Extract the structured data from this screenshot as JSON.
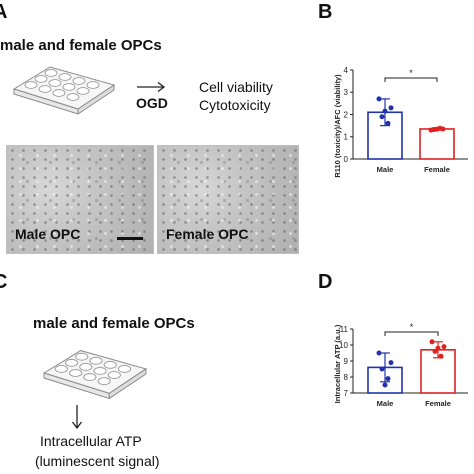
{
  "panels": {
    "A": {
      "letter": "A",
      "heading": "male and female OPCs",
      "treatment": "OGD",
      "readout_1": "Cell viability",
      "readout_2": "Cytotoxicity",
      "image_left_label": "Male OPC",
      "image_right_label": "Female OPC"
    },
    "B": {
      "letter": "B"
    },
    "C": {
      "letter": "C",
      "heading": "male and female OPCs",
      "readout_1": "Intracellular ATP",
      "readout_2": "(luminescent signal)"
    },
    "D": {
      "letter": "D"
    }
  },
  "colors": {
    "male": "#2233aa",
    "female": "#dd2222",
    "axis": "#222222",
    "plate": "#8a8a8a"
  },
  "chart_data": [
    {
      "type": "bar",
      "panel": "B",
      "categories": [
        "Male",
        "Female"
      ],
      "values": [
        2.1,
        1.35
      ],
      "errors": [
        0.6,
        0.05
      ],
      "points": [
        [
          2.7,
          2.3,
          1.9,
          1.6,
          2.15
        ],
        [
          1.3,
          1.35,
          1.32,
          1.38,
          1.34
        ]
      ],
      "ylabel": "R110 (toxicity)/AFC (viability)",
      "ylim": [
        0,
        4
      ],
      "yticks": [
        0,
        1,
        2,
        3,
        4
      ],
      "significance": "*",
      "series_colors": [
        "#2233aa",
        "#dd2222"
      ]
    },
    {
      "type": "bar",
      "panel": "D",
      "categories": [
        "Male",
        "Female"
      ],
      "values": [
        8.6,
        9.7
      ],
      "errors": [
        0.9,
        0.5
      ],
      "points": [
        [
          9.5,
          8.9,
          8.5,
          7.9,
          7.5
        ],
        [
          10.2,
          9.9,
          9.6,
          9.3,
          9.8
        ]
      ],
      "ylabel": "Intracellular ATP (a.u.)",
      "ylim": [
        7,
        11
      ],
      "yticks": [
        7,
        8,
        9,
        10,
        11
      ],
      "significance": "*",
      "series_colors": [
        "#2233aa",
        "#dd2222"
      ]
    }
  ]
}
